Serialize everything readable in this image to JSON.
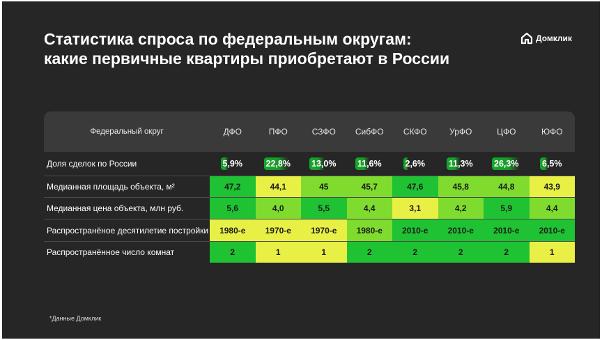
{
  "title": "Статистика спроса по федеральным округам:\nкакие первичные квартиры приобретают в России",
  "logo": {
    "text": "Домклик",
    "icon": "domclick-house-icon"
  },
  "table": {
    "header_label": "Федеральный округ",
    "districts": [
      "ДФО",
      "ПФО",
      "СЗФО",
      "СибФО",
      "СКФО",
      "УрФО",
      "ЦФО",
      "ЮФО"
    ],
    "share_row": {
      "label": "Доля сделок по России",
      "values": [
        "5,9%",
        "22,8%",
        "13,0%",
        "11,6%",
        "2,6%",
        "11,3%",
        "26,3%",
        "6,5%"
      ],
      "shares_pct": [
        5.9,
        22.8,
        13.0,
        11.6,
        2.6,
        11.3,
        26.3,
        6.5
      ]
    },
    "rows": [
      {
        "label": "Медианная площадь объекта, м²",
        "values": [
          "47,2",
          "44,1",
          "45",
          "45,7",
          "47,6",
          "45,8",
          "44,8",
          "43,9"
        ],
        "colors": [
          "g-hi",
          "g-lo",
          "g-mid",
          "g-mid",
          "g-hi",
          "g-mid",
          "g-mid",
          "g-lo"
        ]
      },
      {
        "label": "Медианная цена объекта, млн руб.",
        "values": [
          "5,6",
          "4,0",
          "5,5",
          "4,4",
          "3,1",
          "4,2",
          "5,9",
          "4,4"
        ],
        "colors": [
          "g-hi",
          "g-mid",
          "g-hi",
          "g-mid",
          "g-lo",
          "g-mid",
          "g-hi",
          "g-mid"
        ]
      },
      {
        "label": "Распространёное десятилетие постройки",
        "values": [
          "1980-е",
          "1970-е",
          "1970-е",
          "1980-е",
          "2010-е",
          "2010-е",
          "2010-е",
          "2010-е"
        ],
        "colors": [
          "g-lo",
          "g-lo",
          "g-lo",
          "g-mid",
          "g-hi",
          "g-hi",
          "g-hi",
          "g-hi"
        ]
      },
      {
        "label": "Распространённое число комнат",
        "values": [
          "2",
          "1",
          "1",
          "2",
          "2",
          "2",
          "2",
          "1"
        ],
        "colors": [
          "g-hi",
          "g-lo",
          "g-lo",
          "g-hi",
          "g-hi",
          "g-hi",
          "g-hi",
          "g-lo"
        ]
      }
    ]
  },
  "footnote": "*Данные Домклик",
  "colors": {
    "background": "#262626",
    "high": "#1fc232",
    "mid": "#7fdc2e",
    "low": "#e8f046"
  }
}
